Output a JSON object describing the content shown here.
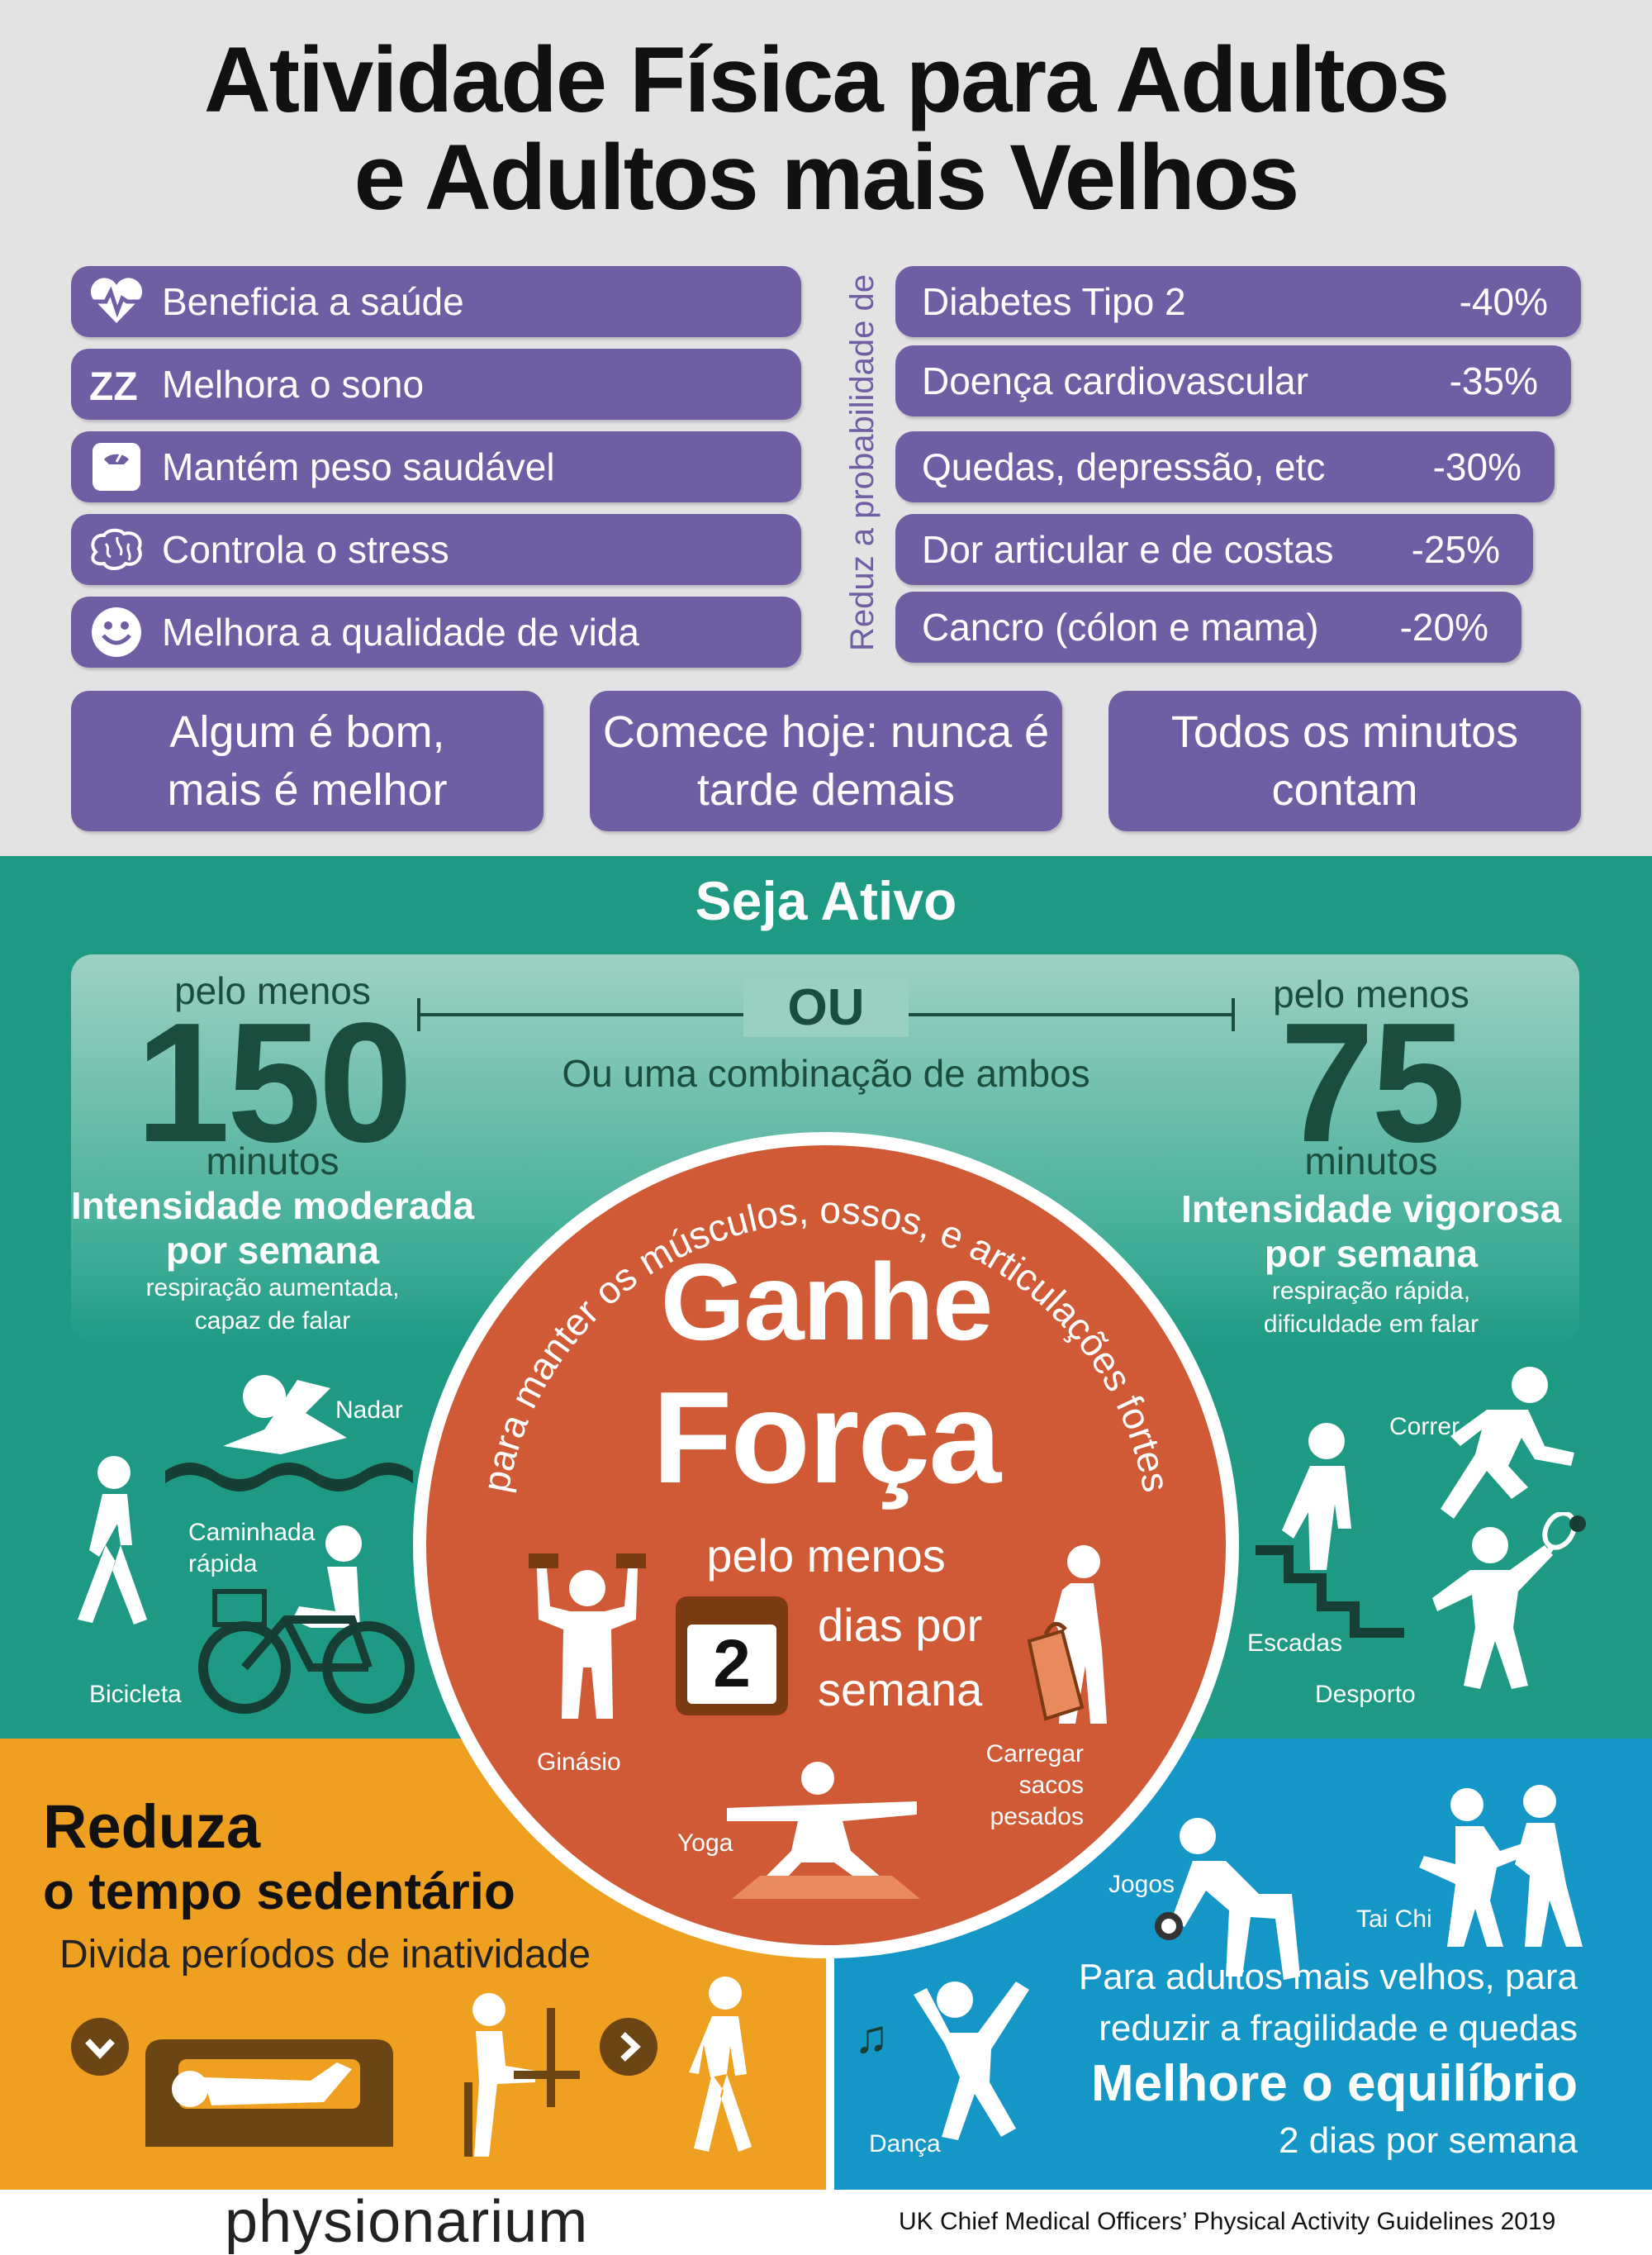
{
  "title": {
    "line1": "Atividade Física para Adultos",
    "line2": "e Adultos mais Velhos"
  },
  "benefits": [
    {
      "icon": "heart-pulse-icon",
      "label": "Beneficia a saúde"
    },
    {
      "icon": "sleep-zz-icon",
      "label": "Melhora o sono"
    },
    {
      "icon": "weighing-scale-icon",
      "label": "Mantém peso saudável"
    },
    {
      "icon": "brain-icon",
      "label": "Controla o stress"
    },
    {
      "icon": "smiley-face-icon",
      "label": "Melhora a qualidade de vida"
    }
  ],
  "risk_label": "Reduz a probabilidade de",
  "risks": [
    {
      "label": "Diabetes Tipo 2",
      "value": "-40%"
    },
    {
      "label": "Doença cardiovascular",
      "value": "-35%"
    },
    {
      "label": "Quedas, depressão, etc",
      "value": "-30%"
    },
    {
      "label": "Dor articular e de costas",
      "value": "-25%"
    },
    {
      "label": "Cancro (cólon e mama)",
      "value": "-20%"
    }
  ],
  "messages": [
    {
      "line1": "Algum é bom,",
      "line2": "mais é melhor"
    },
    {
      "line1": "Comece hoje: nunca é",
      "line2": "tarde demais"
    },
    {
      "line1": "Todos os minutos",
      "line2": "contam"
    }
  ],
  "active": {
    "heading": "Seja Ativo",
    "or_label": "OU",
    "combination": "Ou uma combinação de ambos",
    "moderate": {
      "at_least": "pelo menos",
      "number": "150",
      "unit": "minutos",
      "intensity": "Intensidade moderada",
      "per_week": "por semana",
      "desc1": "respiração aumentada,",
      "desc2": "capaz de falar",
      "activities": {
        "swim": "Nadar",
        "walk_line1": "Caminhada",
        "walk_line2": "rápida",
        "bike": "Bicicleta"
      }
    },
    "vigorous": {
      "at_least": "pelo menos",
      "number": "75",
      "unit": "minutos",
      "intensity": "Intensidade vigorosa",
      "per_week": "por semana",
      "desc1": "respiração rápida,",
      "desc2": "dificuldade em falar",
      "activities": {
        "run": "Correr",
        "stairs": "Escadas",
        "sport": "Desporto"
      }
    }
  },
  "strength": {
    "arc_text": "para manter os músculos, ossos, e articulações fortes",
    "title1": "Ganhe",
    "title2": "Força",
    "at_least": "pelo menos",
    "days": "2",
    "days_line1": "dias por",
    "days_line2": "semana",
    "activities": {
      "gym": "Ginásio",
      "bags_line1": "Carregar sacos",
      "bags_line2": "pesados",
      "yoga": "Yoga"
    }
  },
  "sedentary": {
    "title1": "Reduza",
    "title2": "o tempo sedentário",
    "subtitle": "Divida períodos de inatividade"
  },
  "balance": {
    "line1": "Para adultos mais velhos, para",
    "line2": "reduzir a fragilidade e quedas",
    "title": "Melhore o equilíbrio",
    "days": "2 dias por semana",
    "activities": {
      "games": "Jogos",
      "taichi": "Tai Chi",
      "dance": "Dança"
    }
  },
  "footer": {
    "brand": "physionarium",
    "source": "UK Chief Medical Officers’ Physical Activity Guidelines 2019"
  },
  "colors": {
    "purple": "#6f5ea3",
    "green": "#1e9a84",
    "dark_green": "#1b4d3f",
    "orange_red": "#cf5a35",
    "amber": "#f0a020",
    "blue": "#1496c6"
  }
}
